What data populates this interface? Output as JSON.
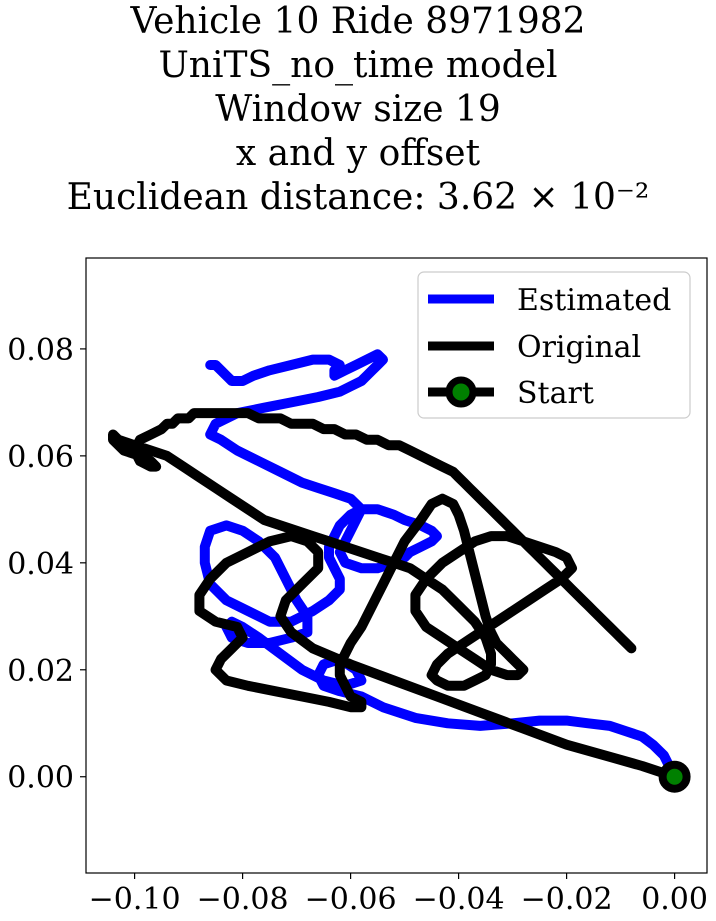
{
  "title_lines": [
    "Vehicle 10 Ride 8971982",
    "UniTS_no_time model",
    "Window size 19",
    "x and y offset",
    "Euclidean distance: 3.62 × 10⁻²"
  ],
  "chart_data": {
    "type": "line",
    "title": "Vehicle 10 Ride 8971982 UniTS_no_time model Window size 19 x and y offset Euclidean distance: 3.62×10^-2",
    "xlabel": "",
    "ylabel": "",
    "xlim": [
      -0.109,
      0.006
    ],
    "ylim": [
      -0.018,
      0.097
    ],
    "x_ticks": [
      -0.1,
      -0.08,
      -0.06,
      -0.04,
      -0.02,
      0.0
    ],
    "x_tick_labels": [
      "−0.10",
      "−0.08",
      "−0.06",
      "−0.04",
      "−0.02",
      "0.00"
    ],
    "y_ticks": [
      0.0,
      0.02,
      0.04,
      0.06,
      0.08
    ],
    "y_tick_labels": [
      "0.00",
      "0.02",
      "0.04",
      "0.06",
      "0.08"
    ],
    "grid": false,
    "legend_position": "top-right",
    "series": [
      {
        "name": "Estimated",
        "color": "#0000ff",
        "x": [
          0.0,
          -0.001,
          -0.002,
          -0.004,
          -0.006,
          -0.009,
          -0.012,
          -0.016,
          -0.02,
          -0.025,
          -0.03,
          -0.036,
          -0.042,
          -0.048,
          -0.054,
          -0.058,
          -0.062,
          -0.065,
          -0.066,
          -0.065,
          -0.062,
          -0.059,
          -0.058,
          -0.061,
          -0.065,
          -0.069,
          -0.073,
          -0.077,
          -0.08,
          -0.082,
          -0.083,
          -0.082,
          -0.079,
          -0.075,
          -0.071,
          -0.068,
          -0.068,
          -0.07,
          -0.072,
          -0.074,
          -0.077,
          -0.08,
          -0.083,
          -0.086,
          -0.087,
          -0.087,
          -0.086,
          -0.083,
          -0.079,
          -0.075,
          -0.071,
          -0.067,
          -0.064,
          -0.062,
          -0.062,
          -0.063,
          -0.064,
          -0.064,
          -0.063,
          -0.062,
          -0.06,
          -0.058,
          -0.055,
          -0.052,
          -0.05,
          -0.047,
          -0.045,
          -0.044,
          -0.045,
          -0.047,
          -0.049,
          -0.05,
          -0.052,
          -0.055,
          -0.058,
          -0.061,
          -0.062,
          -0.061,
          -0.06,
          -0.059,
          -0.058,
          -0.06,
          -0.063,
          -0.066,
          -0.069,
          -0.073,
          -0.077,
          -0.081,
          -0.084,
          -0.086,
          -0.085,
          -0.081,
          -0.076,
          -0.071,
          -0.066,
          -0.062,
          -0.06,
          -0.058,
          -0.057,
          -0.056,
          -0.055,
          -0.054,
          -0.055,
          -0.057,
          -0.059,
          -0.061,
          -0.063,
          -0.063,
          -0.062,
          -0.064,
          -0.067,
          -0.071,
          -0.075,
          -0.078,
          -0.08,
          -0.082,
          -0.083,
          -0.084,
          -0.085,
          -0.086,
          -0.085
        ],
        "y": [
          0.0,
          0.002,
          0.004,
          0.006,
          0.0075,
          0.0085,
          0.0095,
          0.01,
          0.0105,
          0.0105,
          0.01,
          0.0095,
          0.01,
          0.011,
          0.013,
          0.015,
          0.016,
          0.017,
          0.019,
          0.021,
          0.022,
          0.02,
          0.018,
          0.017,
          0.018,
          0.02,
          0.023,
          0.026,
          0.028,
          0.029,
          0.028,
          0.026,
          0.025,
          0.025,
          0.026,
          0.027,
          0.03,
          0.033,
          0.037,
          0.041,
          0.044,
          0.046,
          0.047,
          0.046,
          0.043,
          0.04,
          0.036,
          0.033,
          0.031,
          0.029,
          0.029,
          0.031,
          0.033,
          0.035,
          0.037,
          0.039,
          0.041,
          0.043,
          0.045,
          0.047,
          0.049,
          0.05,
          0.05,
          0.049,
          0.048,
          0.047,
          0.046,
          0.045,
          0.044,
          0.043,
          0.042,
          0.041,
          0.04,
          0.039,
          0.039,
          0.04,
          0.042,
          0.044,
          0.046,
          0.048,
          0.05,
          0.052,
          0.053,
          0.054,
          0.055,
          0.057,
          0.059,
          0.061,
          0.063,
          0.064,
          0.066,
          0.068,
          0.069,
          0.07,
          0.071,
          0.072,
          0.073,
          0.074,
          0.075,
          0.076,
          0.077,
          0.078,
          0.079,
          0.078,
          0.077,
          0.076,
          0.075,
          0.076,
          0.077,
          0.078,
          0.078,
          0.077,
          0.076,
          0.075,
          0.074,
          0.074,
          0.075,
          0.076,
          0.077,
          0.077,
          0.077
        ]
      },
      {
        "name": "Original",
        "color": "#000000",
        "x": [
          0.0,
          -0.006,
          -0.013,
          -0.02,
          -0.028,
          -0.036,
          -0.044,
          -0.052,
          -0.06,
          -0.067,
          -0.071,
          -0.073,
          -0.072,
          -0.069,
          -0.066,
          -0.066,
          -0.068,
          -0.071,
          -0.075,
          -0.079,
          -0.083,
          -0.086,
          -0.088,
          -0.088,
          -0.085,
          -0.081,
          -0.08,
          -0.082,
          -0.084,
          -0.085,
          -0.083,
          -0.079,
          -0.074,
          -0.069,
          -0.064,
          -0.06,
          -0.058,
          -0.058,
          -0.06,
          -0.061,
          -0.062,
          -0.062,
          -0.061,
          -0.06,
          -0.058,
          -0.056,
          -0.054,
          -0.052,
          -0.05,
          -0.047,
          -0.045,
          -0.043,
          -0.041,
          -0.04,
          -0.039,
          -0.038,
          -0.037,
          -0.036,
          -0.035,
          -0.034,
          -0.033,
          -0.032,
          -0.031,
          -0.03,
          -0.029,
          -0.028,
          -0.029,
          -0.031,
          -0.034,
          -0.037,
          -0.04,
          -0.043,
          -0.046,
          -0.048,
          -0.048,
          -0.046,
          -0.043,
          -0.04,
          -0.037,
          -0.034,
          -0.031,
          -0.028,
          -0.025,
          -0.022,
          -0.02,
          -0.019,
          -0.021,
          -0.024,
          -0.027,
          -0.03,
          -0.033,
          -0.036,
          -0.039,
          -0.042,
          -0.044,
          -0.045,
          -0.044,
          -0.042,
          -0.039,
          -0.037,
          -0.035,
          -0.034,
          -0.034,
          -0.035,
          -0.037,
          -0.04,
          -0.043,
          -0.046,
          -0.049,
          -0.052,
          -0.055,
          -0.058,
          -0.061,
          -0.064,
          -0.067,
          -0.07,
          -0.073,
          -0.076,
          -0.079,
          -0.082,
          -0.085,
          -0.088,
          -0.091,
          -0.094,
          -0.097,
          -0.1,
          -0.103,
          -0.104,
          -0.104,
          -0.102,
          -0.099,
          -0.097,
          -0.096,
          -0.097,
          -0.099,
          -0.1,
          -0.099,
          -0.097,
          -0.095,
          -0.094,
          -0.093,
          -0.092,
          -0.091,
          -0.09,
          -0.089,
          -0.087,
          -0.085,
          -0.083,
          -0.081,
          -0.079,
          -0.077,
          -0.075,
          -0.073,
          -0.071,
          -0.069,
          -0.067,
          -0.065,
          -0.063,
          -0.061,
          -0.059,
          -0.057,
          -0.055,
          -0.053,
          -0.051,
          -0.049,
          -0.047,
          -0.045,
          -0.043,
          -0.041,
          -0.04,
          -0.039,
          -0.038,
          -0.037,
          -0.036,
          -0.035,
          -0.034,
          -0.033,
          -0.032,
          -0.031,
          -0.03,
          -0.029,
          -0.028,
          -0.027,
          -0.026,
          -0.025,
          -0.024,
          -0.023,
          -0.022,
          -0.021,
          -0.02,
          -0.019,
          -0.018,
          -0.017,
          -0.016,
          -0.015,
          -0.014,
          -0.013,
          -0.012,
          -0.011,
          -0.01,
          -0.009,
          -0.008
        ],
        "y": [
          0.0,
          0.002,
          0.004,
          0.006,
          0.009,
          0.012,
          0.015,
          0.018,
          0.021,
          0.024,
          0.027,
          0.03,
          0.033,
          0.036,
          0.039,
          0.042,
          0.044,
          0.045,
          0.044,
          0.042,
          0.04,
          0.037,
          0.034,
          0.031,
          0.029,
          0.028,
          0.026,
          0.024,
          0.022,
          0.02,
          0.018,
          0.017,
          0.016,
          0.015,
          0.014,
          0.013,
          0.013,
          0.014,
          0.015,
          0.017,
          0.019,
          0.021,
          0.023,
          0.025,
          0.028,
          0.032,
          0.036,
          0.04,
          0.044,
          0.048,
          0.051,
          0.052,
          0.051,
          0.049,
          0.046,
          0.042,
          0.038,
          0.034,
          0.03,
          0.027,
          0.025,
          0.024,
          0.023,
          0.022,
          0.021,
          0.02,
          0.019,
          0.019,
          0.02,
          0.022,
          0.024,
          0.026,
          0.028,
          0.031,
          0.034,
          0.037,
          0.04,
          0.042,
          0.044,
          0.045,
          0.045,
          0.044,
          0.043,
          0.042,
          0.041,
          0.039,
          0.037,
          0.035,
          0.033,
          0.031,
          0.029,
          0.027,
          0.025,
          0.023,
          0.021,
          0.019,
          0.018,
          0.017,
          0.017,
          0.018,
          0.019,
          0.021,
          0.023,
          0.026,
          0.029,
          0.032,
          0.035,
          0.037,
          0.039,
          0.04,
          0.041,
          0.042,
          0.043,
          0.044,
          0.045,
          0.046,
          0.047,
          0.048,
          0.05,
          0.052,
          0.054,
          0.056,
          0.058,
          0.06,
          0.061,
          0.062,
          0.063,
          0.064,
          0.063,
          0.061,
          0.06,
          0.059,
          0.058,
          0.058,
          0.059,
          0.061,
          0.063,
          0.064,
          0.065,
          0.066,
          0.066,
          0.067,
          0.067,
          0.067,
          0.068,
          0.068,
          0.068,
          0.068,
          0.068,
          0.068,
          0.067,
          0.067,
          0.067,
          0.066,
          0.066,
          0.066,
          0.065,
          0.065,
          0.064,
          0.064,
          0.063,
          0.063,
          0.062,
          0.062,
          0.061,
          0.06,
          0.059,
          0.058,
          0.057,
          0.056,
          0.055,
          0.054,
          0.053,
          0.052,
          0.051,
          0.05,
          0.049,
          0.048,
          0.047,
          0.046,
          0.045,
          0.044,
          0.043,
          0.042,
          0.041,
          0.04,
          0.039,
          0.038,
          0.037,
          0.036,
          0.035,
          0.034,
          0.033,
          0.032,
          0.031,
          0.03,
          0.029,
          0.028,
          0.027,
          0.026,
          0.025,
          0.024
        ]
      }
    ],
    "start_point": {
      "name": "Start",
      "x": 0.0,
      "y": 0.0,
      "marker_color": "#008000",
      "edge_color": "#000000"
    }
  }
}
